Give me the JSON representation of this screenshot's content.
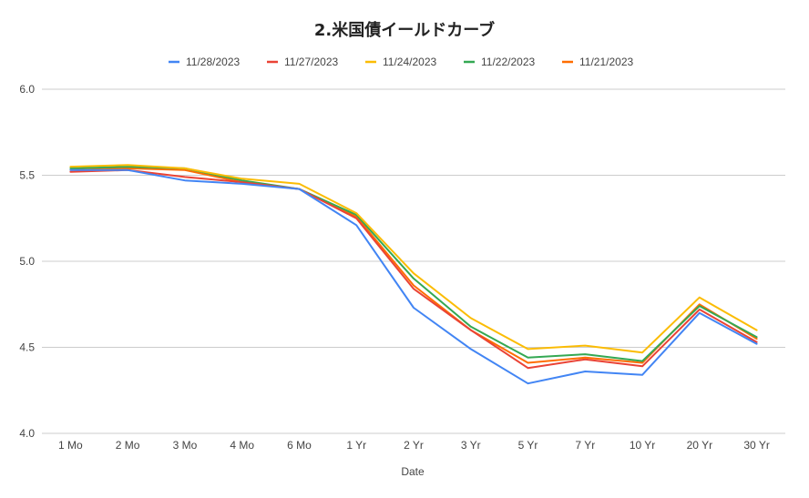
{
  "chart_data": {
    "type": "line",
    "title": "2.米国債イールドカーブ",
    "xlabel": "Date",
    "ylabel": "",
    "ylim": [
      4.0,
      6.0
    ],
    "yticks": [
      "6.0",
      "5.5",
      "5.0",
      "4.5",
      "4.0"
    ],
    "grid": true,
    "legend_position": "top",
    "categories": [
      "1 Mo",
      "2 Mo",
      "3 Mo",
      "4 Mo",
      "6 Mo",
      "1 Yr",
      "2 Yr",
      "3 Yr",
      "5 Yr",
      "7 Yr",
      "10 Yr",
      "20 Yr",
      "30 Yr"
    ],
    "series": [
      {
        "name": "11/28/2023",
        "color": "#4285f4",
        "values": [
          5.53,
          5.53,
          5.47,
          5.45,
          5.42,
          5.21,
          4.73,
          4.49,
          4.29,
          4.36,
          4.34,
          4.7,
          4.52
        ]
      },
      {
        "name": "11/27/2023",
        "color": "#ea4335",
        "values": [
          5.52,
          5.53,
          5.49,
          5.46,
          5.42,
          5.25,
          4.84,
          4.6,
          4.38,
          4.43,
          4.39,
          4.72,
          4.53
        ]
      },
      {
        "name": "11/24/2023",
        "color": "#fbbc04",
        "values": [
          5.55,
          5.56,
          5.54,
          5.48,
          5.45,
          5.28,
          4.93,
          4.67,
          4.49,
          4.51,
          4.47,
          4.79,
          4.6
        ]
      },
      {
        "name": "11/22/2023",
        "color": "#34a853",
        "values": [
          5.54,
          5.55,
          5.54,
          5.47,
          5.42,
          5.27,
          4.9,
          4.62,
          4.44,
          4.46,
          4.42,
          4.74,
          4.56
        ]
      },
      {
        "name": "11/21/2023",
        "color": "#ff6d01",
        "values": [
          5.53,
          5.54,
          5.53,
          5.46,
          5.42,
          5.26,
          4.86,
          4.6,
          4.41,
          4.44,
          4.41,
          4.75,
          4.55
        ]
      }
    ]
  }
}
